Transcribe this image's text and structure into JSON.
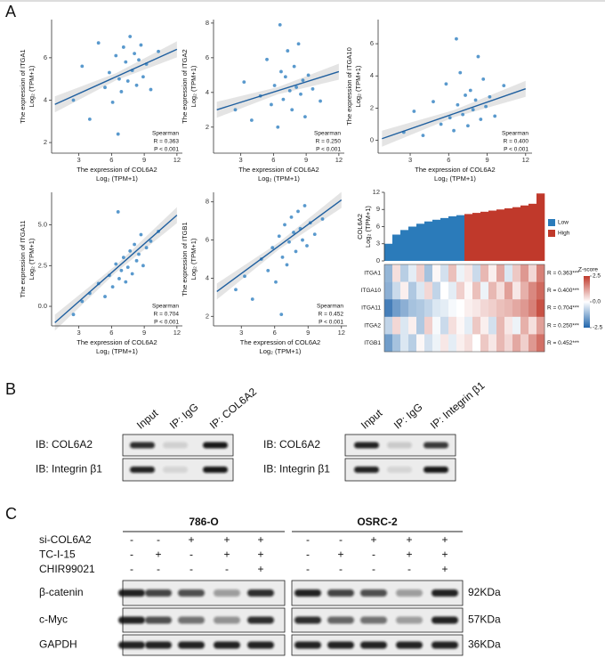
{
  "panel_labels": [
    "A",
    "B",
    "C"
  ],
  "chart_data": [
    {
      "type": "scatter",
      "color": "#2f7fc1",
      "fit_color": "#1f5f9f",
      "x_label": "The expression of COL6A2",
      "x_label_unit": "Log₂ (TPM+1)",
      "y_label": "The expression of ITGA1",
      "y_label_unit": "Log₂ (TPM+1)",
      "stats": [
        "Spearman",
        "R = 0.363",
        "P < 0.001"
      ],
      "xlim": [
        0.5,
        12.5
      ],
      "ylim": [
        1.5,
        7.8
      ],
      "xticks": [
        3,
        6,
        9,
        12
      ],
      "yticks": [
        2,
        4,
        6
      ],
      "x": [
        2.5,
        3.3,
        4.0,
        4.8,
        5.4,
        5.8,
        6.1,
        6.4,
        6.7,
        6.9,
        7.1,
        7.3,
        7.5,
        7.7,
        7.9,
        8.1,
        8.3,
        8.5,
        8.7,
        8.9,
        9.2,
        9.6,
        10.3,
        6.6
      ],
      "y": [
        4.0,
        5.6,
        3.1,
        6.7,
        4.6,
        5.3,
        3.9,
        6.1,
        5.0,
        4.4,
        6.5,
        5.8,
        4.9,
        7.0,
        5.4,
        6.2,
        4.7,
        5.9,
        6.6,
        5.1,
        5.7,
        4.5,
        6.3,
        2.4
      ],
      "fit": {
        "x": [
          0.8,
          12
        ],
        "y": [
          3.8,
          6.4
        ]
      }
    },
    {
      "type": "scatter",
      "color": "#2f7fc1",
      "fit_color": "#1f5f9f",
      "x_label": "The expression of COL6A2",
      "x_label_unit": "Log₂ (TPM+1)",
      "y_label": "The expression of ITGA2",
      "y_label_unit": "Log₂ (TPM+1)",
      "stats": [
        "Spearman",
        "R = 0.250",
        "P < 0.001"
      ],
      "xlim": [
        0.5,
        12.5
      ],
      "ylim": [
        0.5,
        8.2
      ],
      "xticks": [
        3,
        6,
        9,
        12
      ],
      "yticks": [
        2,
        4,
        6,
        8
      ],
      "x": [
        2.5,
        3.3,
        4.0,
        4.8,
        5.4,
        5.8,
        6.1,
        6.4,
        6.7,
        6.9,
        7.1,
        7.3,
        7.5,
        7.7,
        7.9,
        8.1,
        8.3,
        8.5,
        8.7,
        8.9,
        9.2,
        9.6,
        10.3,
        6.6
      ],
      "y": [
        3.0,
        4.6,
        2.4,
        3.8,
        5.9,
        3.3,
        4.4,
        2.0,
        5.2,
        3.6,
        4.9,
        6.4,
        4.1,
        3.0,
        5.5,
        4.3,
        6.8,
        3.9,
        4.7,
        2.6,
        5.0,
        4.2,
        3.5,
        7.9
      ],
      "fit": {
        "x": [
          0.8,
          12
        ],
        "y": [
          3.0,
          5.2
        ]
      }
    },
    {
      "type": "scatter",
      "color": "#2f7fc1",
      "fit_color": "#1f5f9f",
      "x_label": "The expression of COL6A2",
      "x_label_unit": "Log₂ (TPM+1)",
      "y_label": "The expression of ITGA10",
      "y_label_unit": "Log₂ (TPM+1)",
      "stats": [
        "Spearman",
        "R = 0.400",
        "P < 0.001"
      ],
      "xlim": [
        0.5,
        12.5
      ],
      "ylim": [
        -0.8,
        7.5
      ],
      "xticks": [
        3,
        6,
        9,
        12
      ],
      "yticks": [
        0,
        2,
        4,
        6
      ],
      "x": [
        2.5,
        3.3,
        4.0,
        4.8,
        5.4,
        5.8,
        6.1,
        6.4,
        6.7,
        6.9,
        7.1,
        7.3,
        7.5,
        7.7,
        7.9,
        8.1,
        8.3,
        8.5,
        8.7,
        8.9,
        9.2,
        9.6,
        10.3,
        6.6
      ],
      "y": [
        0.5,
        1.8,
        0.3,
        2.4,
        1.0,
        3.5,
        1.4,
        0.6,
        2.2,
        4.2,
        1.6,
        2.8,
        0.9,
        3.1,
        1.9,
        2.5,
        5.2,
        1.3,
        3.8,
        2.1,
        2.7,
        1.5,
        3.4,
        6.3
      ],
      "fit": {
        "x": [
          0.8,
          12
        ],
        "y": [
          0.1,
          3.2
        ]
      }
    },
    {
      "type": "scatter",
      "color": "#2f7fc1",
      "fit_color": "#1f5f9f",
      "x_label": "The expression of COL6A2",
      "x_label_unit": "Log₂ (TPM+1)",
      "y_label": "The expression of ITGA11",
      "y_label_unit": "Log₂ (TPM+1)",
      "stats": [
        "Spearman",
        "R = 0.704",
        "P < 0.001"
      ],
      "xlim": [
        0.5,
        12.5
      ],
      "ylim": [
        -1.2,
        7.0
      ],
      "xticks": [
        3,
        6,
        9,
        12
      ],
      "yticks": [
        {
          "value": 0,
          "label": "0.0"
        },
        2.5,
        {
          "value": 5,
          "label": "5.0"
        }
      ],
      "x": [
        2.5,
        3.3,
        4.0,
        4.8,
        5.4,
        5.8,
        6.1,
        6.4,
        6.7,
        6.9,
        7.1,
        7.3,
        7.5,
        7.7,
        7.9,
        8.1,
        8.3,
        8.5,
        8.7,
        8.9,
        9.2,
        9.6,
        10.3,
        6.6
      ],
      "y": [
        -0.5,
        0.3,
        0.8,
        1.4,
        0.6,
        1.9,
        1.2,
        2.6,
        1.7,
        2.2,
        3.0,
        1.5,
        2.4,
        3.4,
        2.0,
        3.8,
        2.8,
        3.2,
        4.4,
        2.5,
        3.6,
        4.0,
        4.6,
        5.8
      ],
      "fit": {
        "x": [
          0.8,
          12
        ],
        "y": [
          -1.0,
          5.6
        ]
      }
    },
    {
      "type": "scatter",
      "color": "#2f7fc1",
      "fit_color": "#1f5f9f",
      "x_label": "The expression of COL6A2",
      "x_label_unit": "Log₂ (TPM+1)",
      "y_label": "The expression of ITGB1",
      "y_label_unit": "Log₂ (TPM+1)",
      "stats": [
        "Spearman",
        "R = 0.452",
        "P < 0.001"
      ],
      "xlim": [
        0.5,
        12.5
      ],
      "ylim": [
        1.5,
        8.5
      ],
      "xticks": [
        3,
        6,
        9,
        12
      ],
      "yticks": [
        2,
        4,
        6,
        8
      ],
      "x": [
        2.5,
        3.3,
        4.0,
        4.8,
        5.4,
        5.8,
        6.1,
        6.4,
        6.7,
        6.9,
        7.1,
        7.3,
        7.5,
        7.7,
        7.9,
        8.1,
        8.3,
        8.5,
        8.7,
        8.9,
        9.2,
        9.6,
        10.3,
        6.6
      ],
      "y": [
        3.4,
        4.1,
        2.9,
        5.0,
        4.4,
        5.6,
        3.8,
        6.2,
        5.1,
        6.8,
        4.7,
        5.9,
        7.2,
        6.4,
        5.4,
        7.5,
        6.6,
        6.0,
        7.8,
        5.7,
        6.9,
        6.3,
        7.1,
        2.1
      ],
      "fit": {
        "x": [
          0.8,
          12
        ],
        "y": [
          3.3,
          8.1
        ]
      }
    },
    {
      "type": "heatmap",
      "bar_label": "COL6A2",
      "bar_label_unit": "Log₂ (TPM+1)",
      "ylim": [
        0,
        12
      ],
      "yticks": [
        0,
        3,
        6,
        9,
        12
      ],
      "series": [
        {
          "name": "Low",
          "color": "#2b7bba",
          "values": [
            3.0,
            4.6,
            5.4,
            6.0,
            6.5,
            6.9,
            7.2,
            7.5,
            7.8,
            8.0
          ]
        },
        {
          "name": "High",
          "color": "#c0392b",
          "values": [
            8.2,
            8.4,
            8.6,
            8.8,
            9.0,
            9.2,
            9.4,
            9.7,
            10.0,
            11.8
          ]
        }
      ],
      "rows": [
        "ITGA1",
        "ITGA10",
        "ITGA11",
        "ITGA2",
        "ITGB1"
      ],
      "row_labels": [
        "R = 0.363***",
        "R = 0.400***",
        "R = 0.704***",
        "R = 0.250***",
        "R = 0.452***"
      ],
      "z": [
        [
          -1.2,
          0.4,
          -0.8,
          -0.3,
          0.6,
          -1.0,
          0.1,
          -0.5,
          0.8,
          -0.2,
          0.3,
          -0.6,
          0.9,
          0.2,
          1.1,
          -0.4,
          0.7,
          1.3,
          0.5,
          1.6
        ],
        [
          -1.3,
          -0.6,
          0.2,
          -0.9,
          -0.4,
          0.5,
          -0.7,
          0.0,
          -0.3,
          0.6,
          0.1,
          0.8,
          -0.2,
          0.9,
          0.4,
          1.2,
          0.3,
          1.0,
          1.5,
          1.9
        ],
        [
          -2.1,
          -1.6,
          -1.3,
          -1.0,
          -0.9,
          -0.7,
          -0.4,
          -0.3,
          -0.1,
          0.0,
          0.2,
          0.3,
          0.5,
          0.6,
          0.8,
          0.9,
          1.1,
          1.3,
          1.6,
          2.2
        ],
        [
          -0.7,
          0.5,
          -0.4,
          0.2,
          -0.9,
          0.6,
          -0.1,
          -0.6,
          0.4,
          0.1,
          -0.3,
          0.7,
          0.2,
          -0.5,
          0.9,
          0.3,
          -0.2,
          1.0,
          0.4,
          1.2
        ],
        [
          -1.6,
          -1.0,
          -0.4,
          -0.8,
          0.1,
          -0.5,
          -0.2,
          0.3,
          -0.3,
          0.2,
          0.4,
          0.0,
          0.7,
          0.3,
          0.9,
          0.5,
          1.1,
          0.6,
          1.3,
          1.8
        ]
      ],
      "z_title": "Z-score",
      "zlim": [
        -2.5,
        2.5
      ],
      "zticks": [
        2.5,
        {
          "value": 0,
          "label": "0.0"
        },
        -2.5
      ],
      "zcolors": [
        "#2166ac",
        "#ffffff",
        "#c0392b"
      ]
    }
  ],
  "blot_b": [
    {
      "lanes": [
        "Input",
        "IP: IgG",
        "IP: COL6A2"
      ],
      "rows": [
        "IB: COL6A2",
        "IB: Integrin β1"
      ]
    },
    {
      "lanes": [
        "Input",
        "IP: IgG",
        "IP: Integrin β1"
      ],
      "rows": [
        "IB: COL6A2",
        "IB: Integrin β1"
      ]
    }
  ],
  "blot_c": {
    "groups": [
      "786-O",
      "OSRC-2"
    ],
    "treatments": [
      {
        "name": "si-COL6A2",
        "signs": [
          "-",
          "-",
          "+",
          "+",
          "+",
          "-",
          "-",
          "+",
          "+",
          "+"
        ]
      },
      {
        "name": "TC-I-15",
        "signs": [
          "-",
          "+",
          "-",
          "+",
          "+",
          "-",
          "+",
          "-",
          "+",
          "+"
        ]
      },
      {
        "name": "CHIR99021",
        "signs": [
          "-",
          "-",
          "-",
          "-",
          "+",
          "-",
          "-",
          "-",
          "-",
          "+"
        ]
      }
    ],
    "rows": [
      {
        "name": "β-catenin",
        "size": "92KDa"
      },
      {
        "name": "c-Myc",
        "size": "57KDa"
      },
      {
        "name": "GAPDH",
        "size": "36KDa"
      }
    ]
  }
}
